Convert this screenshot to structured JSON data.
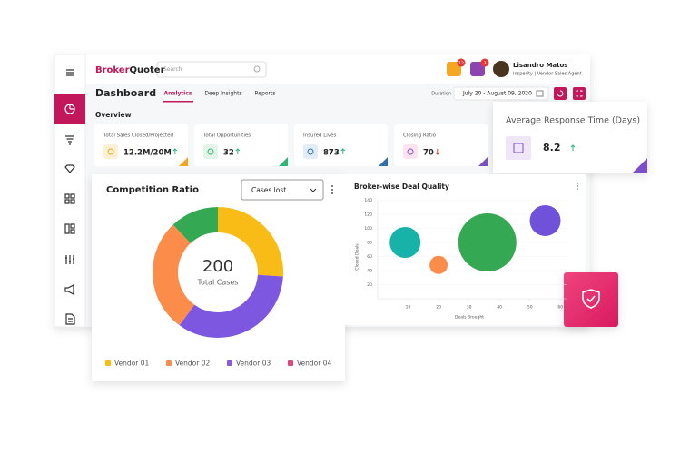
{
  "header": {
    "logo_a": "Broker",
    "logo_b": "Quoter",
    "search_placeholder": "Search",
    "notifications": [
      {
        "count": 12,
        "color": "#f5a623"
      },
      {
        "count": 3,
        "color": "#8e44ad"
      }
    ],
    "user": {
      "name": "Lisandro Matos",
      "role": "Insperity | Vendor Sales Agent"
    }
  },
  "toolbar": {
    "title": "Dashboard",
    "tabs": [
      "Analytics",
      "Deep Insights",
      "Reports"
    ],
    "active_tab": 0,
    "duration_label": "Duration",
    "duration": "July 20 - August 09, 2020"
  },
  "overview": {
    "title": "Overview",
    "cards": [
      {
        "label": "Total Sales Closed/Projected",
        "value": "12.2M/20M",
        "trend": "up",
        "color": "#f5a623",
        "tint": "#fdf0d5"
      },
      {
        "label": "Total Opportunities",
        "value": 32,
        "trend": "up",
        "color": "#2bb673",
        "tint": "#e3f5e8"
      },
      {
        "label": "Insured Lives",
        "value": 873,
        "trend": "up",
        "color": "#2f6fb0",
        "tint": "#e2ecf9"
      },
      {
        "label": "Closing Ratio",
        "value": 70,
        "trend": "down",
        "color": "#7b4fc9",
        "tint": "#fbe4ef"
      }
    ]
  },
  "response_card": {
    "title": "Average Response Time (Days)",
    "value": 8.2,
    "trend": "up",
    "color": "#7b4fc9",
    "tint": "#efe6f7"
  },
  "chart_data": [
    {
      "type": "pie",
      "title": "Competition Ratio",
      "dropdown": "Cases lost",
      "center_value": 200,
      "center_label": "Total Cases",
      "values": [
        52,
        68,
        56,
        24
      ],
      "colors": [
        "#f9bb15",
        "#7e57e0",
        "#fb8c4a",
        "#34a853"
      ],
      "legend": [
        {
          "name": "Vendor 01",
          "color": "#f9bb15"
        },
        {
          "name": "Vendor 02",
          "color": "#fb8c4a"
        },
        {
          "name": "Vendor 03",
          "color": "#8e5bd9"
        },
        {
          "name": "Vendor 04",
          "color": "#e6457a"
        }
      ]
    },
    {
      "type": "scatter",
      "title": "Broker-wise Deal Quality",
      "xlabel": "Deals Brought",
      "ylabel": "Closed Deals",
      "x": [
        9,
        20,
        36,
        55
      ],
      "values": [
        80,
        48,
        80,
        111
      ],
      "sizes": [
        17,
        10,
        32,
        17
      ],
      "colors": [
        "#17b3a8",
        "#fb8c4a",
        "#34a853",
        "#6f52d9"
      ],
      "xlim": [
        0,
        62
      ],
      "ylim": [
        0,
        140
      ],
      "xticks": [
        10,
        20,
        30,
        40,
        50,
        60
      ],
      "yticks": [
        20,
        40,
        60,
        80,
        100,
        120,
        140
      ],
      "grid": true
    }
  ]
}
